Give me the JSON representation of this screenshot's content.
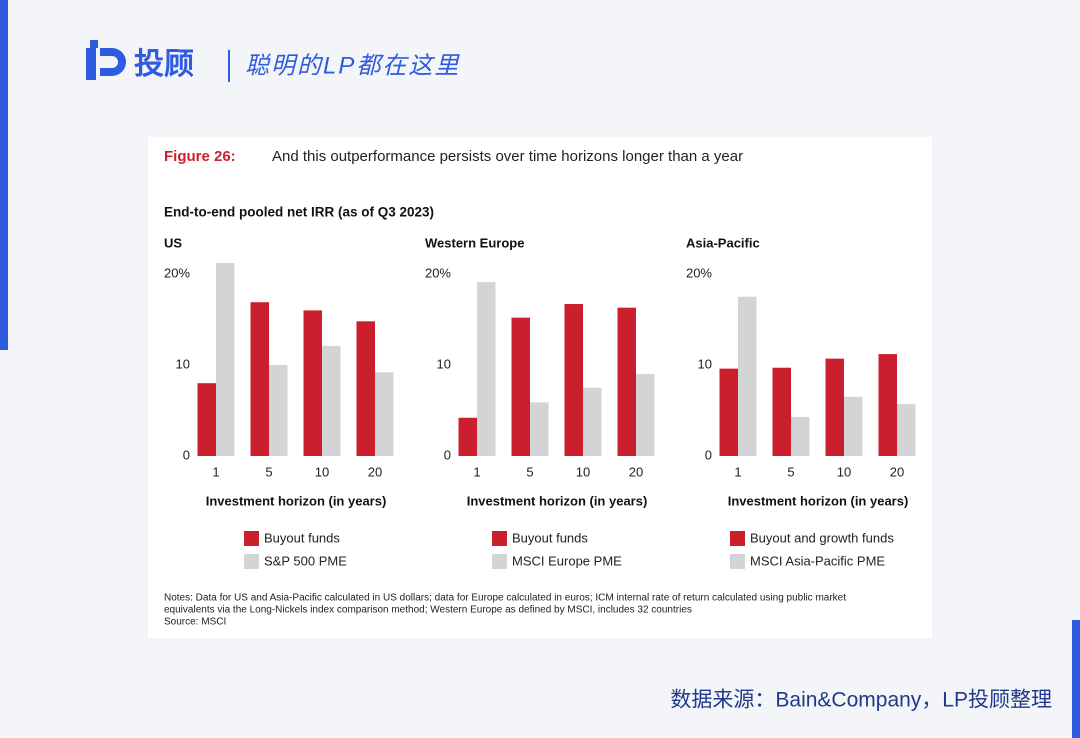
{
  "header": {
    "brand": "投顾",
    "slogan": "聪明的LP都在这里"
  },
  "figure": {
    "label": "Figure 26:",
    "title": "And this outperformance persists over time horizons longer than a year",
    "subtitle": "End-to-end pooled net IRR (as of Q3 2023)",
    "notes": [
      "Notes: Data for US and Asia-Pacific calculated in US dollars; data for Europe calculated in euros; ICM internal rate of return calculated using public market",
      "equivalents via the Long-Nickels index comparison method; Western Europe as defined by MSCI, includes 32 countries"
    ],
    "source": "Source: MSCI"
  },
  "chart_data": [
    {
      "type": "bar",
      "title": "US",
      "xlabel": "Investment horizon (in years)",
      "categories": [
        "1",
        "5",
        "10",
        "20"
      ],
      "series": [
        {
          "name": "Buyout funds",
          "color": "#cc1f2d",
          "values": [
            8.0,
            16.9,
            16.0,
            14.8
          ]
        },
        {
          "name": "S&P 500 PME",
          "color": "#d3d4d6",
          "values": [
            21.2,
            10.0,
            12.1,
            9.2
          ]
        }
      ],
      "ylim": [
        0,
        22
      ],
      "yticks": [
        0,
        10,
        {
          "value": 20,
          "label": "20%"
        }
      ]
    },
    {
      "type": "bar",
      "title": "Western Europe",
      "xlabel": "Investment horizon (in years)",
      "categories": [
        "1",
        "5",
        "10",
        "20"
      ],
      "series": [
        {
          "name": "Buyout funds",
          "color": "#cc1f2d",
          "values": [
            4.2,
            15.2,
            16.7,
            16.3
          ]
        },
        {
          "name": "MSCI Europe PME",
          "color": "#d3d4d6",
          "values": [
            19.1,
            5.9,
            7.5,
            9.0
          ]
        }
      ],
      "ylim": [
        0,
        22
      ],
      "yticks": [
        0,
        10,
        {
          "value": 20,
          "label": "20%"
        }
      ]
    },
    {
      "type": "bar",
      "title": "Asia-Pacific",
      "xlabel": "Investment horizon (in years)",
      "categories": [
        "1",
        "5",
        "10",
        "20"
      ],
      "series": [
        {
          "name": "Buyout and growth funds",
          "color": "#cc1f2d",
          "values": [
            9.6,
            9.7,
            10.7,
            11.2
          ]
        },
        {
          "name": "MSCI Asia-Pacific PME",
          "color": "#d3d4d6",
          "values": [
            17.5,
            4.3,
            6.5,
            5.7
          ]
        }
      ],
      "ylim": [
        0,
        22
      ],
      "yticks": [
        0,
        10,
        {
          "value": 20,
          "label": "20%"
        }
      ]
    }
  ],
  "footer": {
    "credit": "数据来源：Bain&Company，LP投顾整理"
  }
}
